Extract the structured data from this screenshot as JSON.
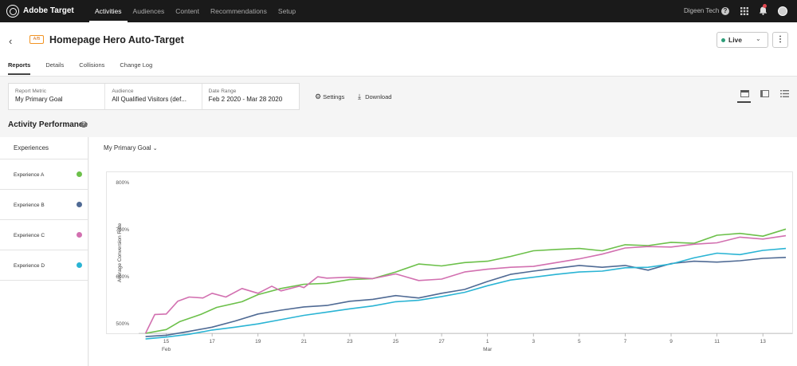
{
  "topbar": {
    "brand": "Adobe Target",
    "nav": [
      "Activities",
      "Audiences",
      "Content",
      "Recommendations",
      "Setup"
    ],
    "active_nav": "Activities",
    "org": "Digeen Tech",
    "help": "?"
  },
  "activity": {
    "badge": "A/B",
    "title": "Homepage Hero Auto-Target",
    "status": "Live",
    "more": "⋮",
    "tabs": [
      "Reports",
      "Details",
      "Collisions",
      "Change Log"
    ],
    "active_tab": "Reports"
  },
  "filters": {
    "report_metric_label": "Report Metric",
    "report_metric_value": "My Primary Goal",
    "audience_label": "Audience",
    "audience_value": "All Qualified Visitors (def...",
    "date_range_label": "Date Range",
    "date_range_value": "Feb 2 2020 - Mar 28 2020",
    "settings": "Settings",
    "download": "Download"
  },
  "performance": {
    "title": "Activity Performance",
    "experiences_header": "Experiences",
    "metric_selector": "My Primary Goal",
    "experiences": [
      {
        "name": "Experience A",
        "color": "#6cc04a"
      },
      {
        "name": "Experience B",
        "color": "#4f6a94"
      },
      {
        "name": "Experience C",
        "color": "#d270b0"
      },
      {
        "name": "Experience D",
        "color": "#2ab4d4"
      }
    ]
  },
  "chart_data": {
    "type": "line",
    "ylabel": "Average Conversion Rate",
    "y_ticks": [
      "500%",
      "600%",
      "700%",
      "800%"
    ],
    "ylim": [
      480,
      820
    ],
    "x_ticks": [
      {
        "day": 15,
        "label": "15",
        "sub": "Feb"
      },
      {
        "day": 17,
        "label": "17"
      },
      {
        "day": 19,
        "label": "19"
      },
      {
        "day": 21,
        "label": "21"
      },
      {
        "day": 23,
        "label": "23"
      },
      {
        "day": 25,
        "label": "25"
      },
      {
        "day": 27,
        "label": "27"
      },
      {
        "day": 29,
        "label": "1",
        "sub": "Mar"
      },
      {
        "day": 31,
        "label": "3"
      },
      {
        "day": 33,
        "label": "5"
      },
      {
        "day": 35,
        "label": "7"
      },
      {
        "day": 37,
        "label": "9"
      },
      {
        "day": 39,
        "label": "11"
      },
      {
        "day": 41,
        "label": "13"
      }
    ],
    "xlim": [
      13.8,
      42.0
    ],
    "series": [
      {
        "name": "Experience A",
        "color": "#6cc04a",
        "points": [
          [
            14.1,
            480
          ],
          [
            15,
            488
          ],
          [
            15.6,
            505
          ],
          [
            16.5,
            520
          ],
          [
            17.2,
            535
          ],
          [
            18.3,
            547
          ],
          [
            19,
            562
          ],
          [
            20,
            575
          ],
          [
            21,
            584
          ],
          [
            22,
            586
          ],
          [
            23,
            594
          ],
          [
            24,
            596
          ],
          [
            25,
            610
          ],
          [
            26,
            627
          ],
          [
            27,
            623
          ],
          [
            28,
            630
          ],
          [
            29,
            633
          ],
          [
            30,
            643
          ],
          [
            31,
            655
          ],
          [
            32,
            658
          ],
          [
            33,
            660
          ],
          [
            34,
            655
          ],
          [
            35,
            668
          ],
          [
            36,
            666
          ],
          [
            37,
            673
          ],
          [
            38,
            671
          ],
          [
            39,
            688
          ],
          [
            40,
            692
          ],
          [
            41,
            686
          ],
          [
            42,
            701
          ]
        ]
      },
      {
        "name": "Experience B",
        "color": "#4f6a94",
        "points": [
          [
            14.1,
            473
          ],
          [
            15,
            476
          ],
          [
            16,
            484
          ],
          [
            17,
            493
          ],
          [
            18,
            506
          ],
          [
            19,
            521
          ],
          [
            20,
            529
          ],
          [
            21,
            536
          ],
          [
            22,
            539
          ],
          [
            23,
            548
          ],
          [
            24,
            552
          ],
          [
            25,
            560
          ],
          [
            26,
            555
          ],
          [
            27,
            565
          ],
          [
            28,
            573
          ],
          [
            29,
            590
          ],
          [
            30,
            605
          ],
          [
            31,
            612
          ],
          [
            32,
            618
          ],
          [
            33,
            624
          ],
          [
            34,
            620
          ],
          [
            35,
            624
          ],
          [
            36,
            614
          ],
          [
            37,
            628
          ],
          [
            38,
            633
          ],
          [
            39,
            631
          ],
          [
            40,
            634
          ],
          [
            41,
            639
          ],
          [
            42,
            641
          ]
        ]
      },
      {
        "name": "Experience C",
        "color": "#d270b0",
        "points": [
          [
            14.1,
            480
          ],
          [
            14.5,
            520
          ],
          [
            15,
            521
          ],
          [
            15.5,
            548
          ],
          [
            16,
            557
          ],
          [
            16.6,
            555
          ],
          [
            17,
            565
          ],
          [
            17.6,
            557
          ],
          [
            18.3,
            575
          ],
          [
            19,
            565
          ],
          [
            19.6,
            580
          ],
          [
            20,
            570
          ],
          [
            20.8,
            580
          ],
          [
            21,
            577
          ],
          [
            21.6,
            600
          ],
          [
            22,
            597
          ],
          [
            22.5,
            598
          ],
          [
            23,
            599
          ],
          [
            24,
            596
          ],
          [
            25,
            606
          ],
          [
            26,
            592
          ],
          [
            27,
            595
          ],
          [
            28,
            610
          ],
          [
            29,
            616
          ],
          [
            30,
            620
          ],
          [
            31,
            622
          ],
          [
            32,
            630
          ],
          [
            33,
            638
          ],
          [
            34,
            648
          ],
          [
            35,
            661
          ],
          [
            36,
            664
          ],
          [
            37,
            663
          ],
          [
            38,
            669
          ],
          [
            39,
            672
          ],
          [
            40,
            684
          ],
          [
            41,
            680
          ],
          [
            42,
            687
          ]
        ]
      },
      {
        "name": "Experience D",
        "color": "#2ab4d4",
        "points": [
          [
            14.1,
            468
          ],
          [
            15,
            472
          ],
          [
            16,
            478
          ],
          [
            17,
            487
          ],
          [
            18,
            493
          ],
          [
            19,
            500
          ],
          [
            20,
            509
          ],
          [
            21,
            518
          ],
          [
            22,
            525
          ],
          [
            23,
            532
          ],
          [
            24,
            538
          ],
          [
            25,
            547
          ],
          [
            26,
            550
          ],
          [
            27,
            558
          ],
          [
            28,
            567
          ],
          [
            29,
            581
          ],
          [
            30,
            593
          ],
          [
            31,
            599
          ],
          [
            32,
            605
          ],
          [
            33,
            610
          ],
          [
            34,
            612
          ],
          [
            35,
            619
          ],
          [
            36,
            620
          ],
          [
            37,
            627
          ],
          [
            38,
            640
          ],
          [
            39,
            650
          ],
          [
            40,
            647
          ],
          [
            41,
            656
          ],
          [
            42,
            660
          ]
        ]
      }
    ]
  }
}
